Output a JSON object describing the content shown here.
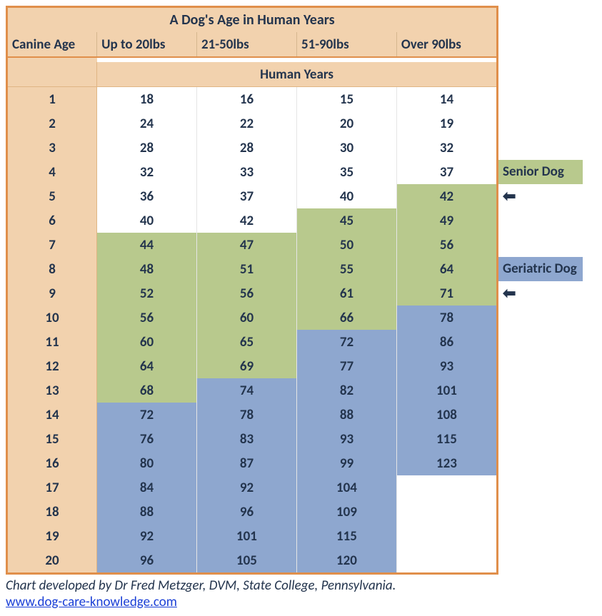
{
  "title": "A Dog's Age in Human Years",
  "columns": [
    "Canine Age",
    "Up to 20lbs",
    "21-50lbs",
    "51-90lbs",
    "Over 90lbs"
  ],
  "human_years_label": "Human Years",
  "colors": {
    "border": "#e08f4b",
    "header_bg": "#f2d2ae",
    "senior_bg": "#b8c98d",
    "geriatric_bg": "#8ea7cf",
    "text": "#23344d",
    "link": "#1a3fd6"
  },
  "legend": {
    "senior": "Senior Dog",
    "geriatric": "Geriatric Dog",
    "arrow": "←"
  },
  "rows": [
    {
      "age": 1,
      "vals": [
        18,
        16,
        15,
        14
      ],
      "cls": [
        "",
        "",
        "",
        ""
      ]
    },
    {
      "age": 2,
      "vals": [
        24,
        22,
        20,
        19
      ],
      "cls": [
        "",
        "",
        "",
        ""
      ]
    },
    {
      "age": 3,
      "vals": [
        28,
        28,
        30,
        32
      ],
      "cls": [
        "",
        "",
        "",
        ""
      ]
    },
    {
      "age": 4,
      "vals": [
        32,
        33,
        35,
        37
      ],
      "cls": [
        "",
        "",
        "",
        ""
      ]
    },
    {
      "age": 5,
      "vals": [
        36,
        37,
        40,
        42
      ],
      "cls": [
        "",
        "",
        "",
        "senior"
      ]
    },
    {
      "age": 6,
      "vals": [
        40,
        42,
        45,
        49
      ],
      "cls": [
        "",
        "",
        "senior",
        "senior"
      ]
    },
    {
      "age": 7,
      "vals": [
        44,
        47,
        50,
        56
      ],
      "cls": [
        "senior",
        "senior",
        "senior",
        "senior"
      ]
    },
    {
      "age": 8,
      "vals": [
        48,
        51,
        55,
        64
      ],
      "cls": [
        "senior",
        "senior",
        "senior",
        "senior"
      ]
    },
    {
      "age": 9,
      "vals": [
        52,
        56,
        61,
        71
      ],
      "cls": [
        "senior",
        "senior",
        "senior",
        "senior"
      ]
    },
    {
      "age": 10,
      "vals": [
        56,
        60,
        66,
        78
      ],
      "cls": [
        "senior",
        "senior",
        "senior",
        "geriatric"
      ]
    },
    {
      "age": 11,
      "vals": [
        60,
        65,
        72,
        86
      ],
      "cls": [
        "senior",
        "senior",
        "geriatric",
        "geriatric"
      ]
    },
    {
      "age": 12,
      "vals": [
        64,
        69,
        77,
        93
      ],
      "cls": [
        "senior",
        "senior",
        "geriatric",
        "geriatric"
      ]
    },
    {
      "age": 13,
      "vals": [
        68,
        74,
        82,
        101
      ],
      "cls": [
        "senior",
        "geriatric",
        "geriatric",
        "geriatric"
      ]
    },
    {
      "age": 14,
      "vals": [
        72,
        78,
        88,
        108
      ],
      "cls": [
        "geriatric",
        "geriatric",
        "geriatric",
        "geriatric"
      ]
    },
    {
      "age": 15,
      "vals": [
        76,
        83,
        93,
        115
      ],
      "cls": [
        "geriatric",
        "geriatric",
        "geriatric",
        "geriatric"
      ]
    },
    {
      "age": 16,
      "vals": [
        80,
        87,
        99,
        123
      ],
      "cls": [
        "geriatric",
        "geriatric",
        "geriatric",
        "geriatric"
      ]
    },
    {
      "age": 17,
      "vals": [
        84,
        92,
        104,
        null
      ],
      "cls": [
        "geriatric",
        "geriatric",
        "geriatric",
        ""
      ]
    },
    {
      "age": 18,
      "vals": [
        88,
        96,
        109,
        null
      ],
      "cls": [
        "geriatric",
        "geriatric",
        "geriatric",
        ""
      ]
    },
    {
      "age": 19,
      "vals": [
        92,
        101,
        115,
        null
      ],
      "cls": [
        "geriatric",
        "geriatric",
        "geriatric",
        ""
      ]
    },
    {
      "age": 20,
      "vals": [
        96,
        105,
        120,
        null
      ],
      "cls": [
        "geriatric",
        "geriatric",
        "geriatric",
        ""
      ]
    }
  ],
  "credit": "Chart developed by Dr Fred Metzger, DVM, State College, Pennsylvania.",
  "link": "www.dog-care-knowledge.com"
}
